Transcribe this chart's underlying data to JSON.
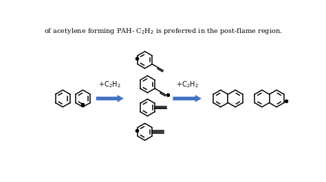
{
  "arrow_color": "#4472C4",
  "line_color": "#000000",
  "bg_color": "#ffffff",
  "fig_width": 4.74,
  "fig_height": 2.65,
  "dpi": 100,
  "r": 16
}
